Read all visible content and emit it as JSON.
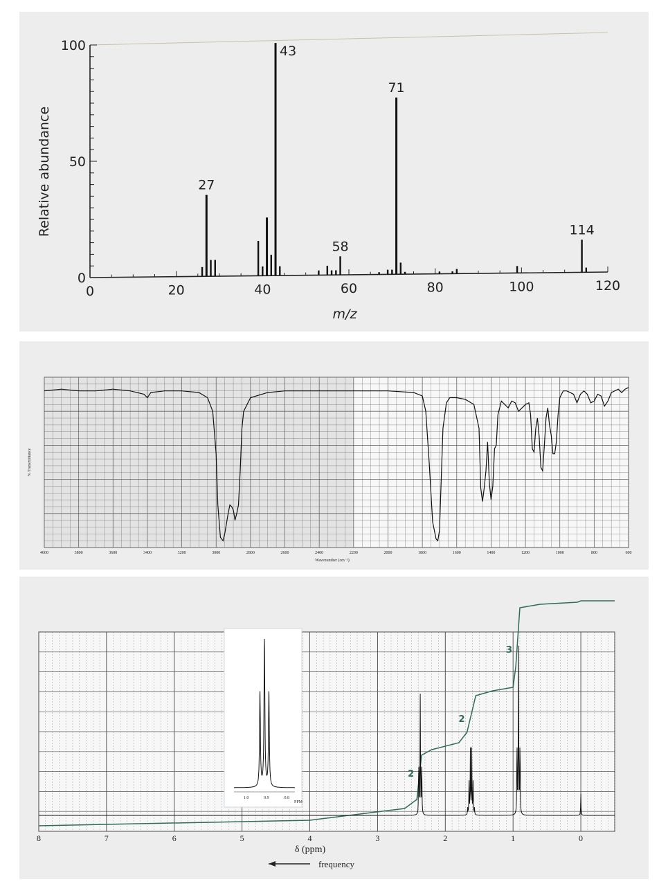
{
  "chart_data": [
    {
      "type": "bar",
      "title": "",
      "xlabel": "m/z",
      "ylabel": "Relative abundance",
      "xlim": [
        0,
        120
      ],
      "ylim": [
        0,
        100
      ],
      "x_ticks": [
        0,
        20,
        40,
        60,
        80,
        100,
        120
      ],
      "y_ticks": [
        0,
        50,
        100
      ],
      "peaks": [
        {
          "mz": 26,
          "value": 4
        },
        {
          "mz": 27,
          "value": 35,
          "label": "27"
        },
        {
          "mz": 28,
          "value": 7
        },
        {
          "mz": 29,
          "value": 7
        },
        {
          "mz": 39,
          "value": 15
        },
        {
          "mz": 40,
          "value": 4
        },
        {
          "mz": 41,
          "value": 25
        },
        {
          "mz": 42,
          "value": 9
        },
        {
          "mz": 43,
          "value": 100,
          "label": "43"
        },
        {
          "mz": 44,
          "value": 4
        },
        {
          "mz": 53,
          "value": 2
        },
        {
          "mz": 55,
          "value": 4
        },
        {
          "mz": 56,
          "value": 2
        },
        {
          "mz": 57,
          "value": 2
        },
        {
          "mz": 58,
          "value": 8,
          "label": "58"
        },
        {
          "mz": 67,
          "value": 1
        },
        {
          "mz": 69,
          "value": 2
        },
        {
          "mz": 70,
          "value": 2
        },
        {
          "mz": 71,
          "value": 76,
          "label": "71"
        },
        {
          "mz": 72,
          "value": 5
        },
        {
          "mz": 73,
          "value": 1
        },
        {
          "mz": 81,
          "value": 1
        },
        {
          "mz": 84,
          "value": 1
        },
        {
          "mz": 85,
          "value": 2
        },
        {
          "mz": 99,
          "value": 3
        },
        {
          "mz": 114,
          "value": 14,
          "label": "114"
        },
        {
          "mz": 115,
          "value": 2
        }
      ]
    },
    {
      "type": "line",
      "title": "",
      "xlabel": "Wavenumber (cm⁻¹)",
      "ylabel": "% Transmittance",
      "xlim": [
        4000,
        600
      ],
      "x_ticks": [
        4000,
        3800,
        3600,
        3400,
        3200,
        3000,
        2800,
        2600,
        2400,
        2200,
        2000,
        1800,
        1600,
        1400,
        1200,
        1000,
        800,
        600
      ],
      "x": [
        4000,
        3900,
        3800,
        3700,
        3600,
        3500,
        3420,
        3400,
        3380,
        3300,
        3200,
        3100,
        3050,
        3020,
        3000,
        2990,
        2975,
        2960,
        2950,
        2940,
        2930,
        2920,
        2910,
        2900,
        2890,
        2880,
        2870,
        2860,
        2850,
        2840,
        2800,
        2700,
        2600,
        2400,
        2200,
        2000,
        1850,
        1800,
        1780,
        1760,
        1740,
        1720,
        1710,
        1700,
        1690,
        1680,
        1660,
        1640,
        1600,
        1550,
        1500,
        1470,
        1460,
        1450,
        1440,
        1430,
        1420,
        1410,
        1400,
        1390,
        1380,
        1370,
        1360,
        1340,
        1320,
        1300,
        1280,
        1260,
        1240,
        1220,
        1200,
        1180,
        1170,
        1160,
        1150,
        1140,
        1130,
        1120,
        1110,
        1100,
        1090,
        1080,
        1070,
        1060,
        1050,
        1040,
        1030,
        1020,
        1010,
        1000,
        980,
        960,
        940,
        920,
        900,
        880,
        860,
        840,
        820,
        800,
        780,
        760,
        740,
        720,
        700,
        680,
        660,
        640,
        620,
        600
      ],
      "y": [
        92,
        93,
        92,
        92,
        93,
        92,
        90,
        88,
        91,
        92,
        92,
        91,
        88,
        80,
        55,
        25,
        6,
        4,
        8,
        14,
        20,
        25,
        24,
        22,
        16,
        20,
        25,
        45,
        70,
        80,
        88,
        91,
        92,
        92,
        92,
        92,
        91,
        89,
        80,
        50,
        15,
        5,
        4,
        10,
        40,
        70,
        85,
        88,
        88,
        87,
        84,
        70,
        35,
        27,
        35,
        45,
        62,
        38,
        28,
        36,
        58,
        60,
        78,
        86,
        84,
        82,
        86,
        85,
        80,
        82,
        84,
        85,
        78,
        58,
        56,
        70,
        76,
        65,
        47,
        45,
        60,
        76,
        82,
        72,
        66,
        55,
        55,
        62,
        78,
        88,
        92,
        92,
        91,
        90,
        85,
        90,
        92,
        90,
        85,
        86,
        90,
        89,
        83,
        86,
        91,
        92,
        93,
        91,
        93,
        94
      ]
    },
    {
      "type": "line",
      "title": "",
      "xlabel": "δ (ppm)",
      "direction_label": "frequency",
      "xlim": [
        8,
        -0.5
      ],
      "x_ticks": [
        8,
        7,
        6,
        5,
        4,
        3,
        2,
        1,
        0
      ],
      "peaks": [
        {
          "ppm": 2.37,
          "height": 0.66,
          "splitting": 0.022,
          "count": 3
        },
        {
          "ppm": 1.62,
          "height": 0.36,
          "splitting": 0.02,
          "count": 6
        },
        {
          "ppm": 0.92,
          "height": 0.92,
          "splitting": 0.022,
          "count": 3
        },
        {
          "ppm": 0.0,
          "height": 0.12,
          "splitting": 0,
          "count": 1
        }
      ],
      "integrations": [
        {
          "ppm": 2.37,
          "label": "2"
        },
        {
          "ppm": 1.62,
          "label": "2"
        },
        {
          "ppm": 0.92,
          "label": "3"
        }
      ],
      "inset": {
        "x_ticks": [
          1.0,
          0.9,
          0.8
        ],
        "unit": "PPM",
        "center": 0.91,
        "heights": [
          0.64,
          1.0,
          0.64
        ]
      }
    }
  ]
}
